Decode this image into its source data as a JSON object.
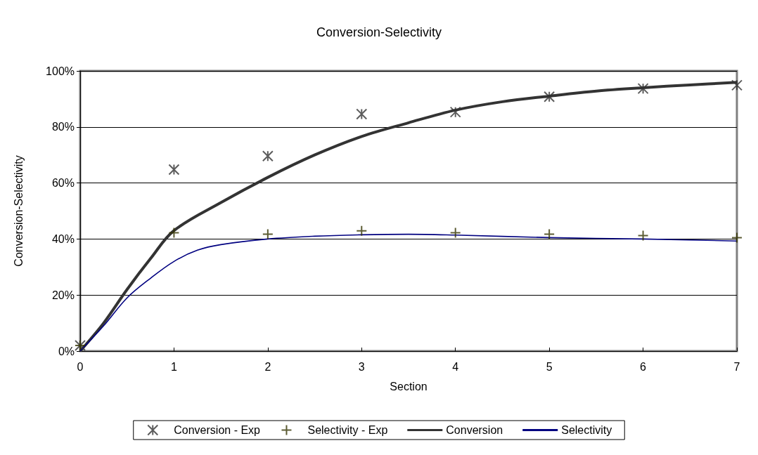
{
  "chart_data": {
    "type": "line",
    "title": "Conversion-Selectivity",
    "xlabel": "Section",
    "ylabel": "Conversion-Selectivity",
    "xlim": [
      0,
      7
    ],
    "xticks": [
      0,
      1,
      2,
      3,
      4,
      5,
      6,
      7
    ],
    "ylim": [
      0,
      100
    ],
    "yticks": [
      {
        "value": 0,
        "label": "0%"
      },
      {
        "value": 20,
        "label": "20%"
      },
      {
        "value": 40,
        "label": "40%"
      },
      {
        "value": 60,
        "label": "60%"
      },
      {
        "value": 80,
        "label": "80%"
      },
      {
        "value": 100,
        "label": "100%"
      }
    ],
    "grid": "y",
    "legend": "bottom",
    "series": [
      {
        "name": "Conversion - Exp",
        "type": "scatter",
        "marker": "cross",
        "color": "#333333",
        "x": [
          0,
          1,
          2,
          3,
          4,
          5,
          6,
          7
        ],
        "values": [
          2,
          64.8,
          69.6,
          84.6,
          85.3,
          90.8,
          93.7,
          94.9
        ]
      },
      {
        "name": "Selectivity - Exp",
        "type": "scatter",
        "marker": "cross",
        "color": "#333300",
        "x": [
          0,
          1,
          2,
          3,
          4,
          5,
          6,
          7
        ],
        "values": [
          2,
          42.2,
          41.7,
          42.9,
          42.2,
          41.7,
          41.2,
          40.5
        ]
      },
      {
        "name": "Conversion",
        "type": "line",
        "marker": "none",
        "color": "#333333",
        "x": [
          0,
          0.25,
          0.5,
          0.75,
          1,
          1.5,
          2,
          2.5,
          3,
          3.5,
          4,
          4.5,
          5,
          5.5,
          6,
          6.5,
          7
        ],
        "values": [
          0,
          10,
          22,
          33,
          43,
          53,
          62,
          70,
          76.6,
          81.5,
          86,
          89,
          91,
          92.8,
          94,
          95,
          95.9
        ]
      },
      {
        "name": "Selectivity",
        "type": "line",
        "marker": "none",
        "color": "#000080",
        "x": [
          0,
          0.25,
          0.5,
          0.75,
          1,
          1.25,
          1.5,
          2,
          2.5,
          3,
          3.5,
          4,
          5,
          6,
          7
        ],
        "values": [
          0,
          9,
          19,
          26,
          32,
          36,
          38,
          40,
          41,
          41.5,
          41.7,
          41.4,
          40.5,
          40,
          39.3
        ]
      }
    ]
  }
}
